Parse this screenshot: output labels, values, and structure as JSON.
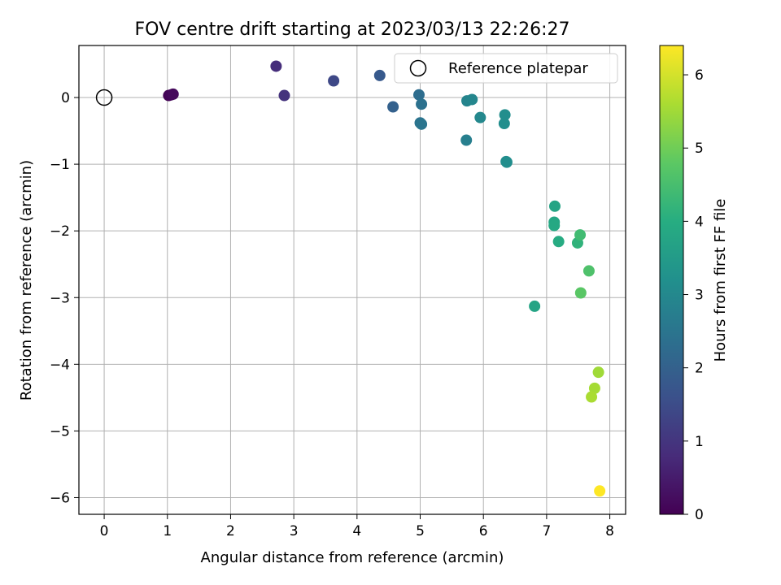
{
  "chart_data": {
    "type": "scatter",
    "title": "FOV centre drift starting at 2023/03/13 22:26:27",
    "xlabel": "Angular distance from reference (arcmin)",
    "ylabel": "Rotation from reference (arcmin)",
    "xlim": [
      -0.4,
      8.25
    ],
    "ylim": [
      -6.25,
      0.78
    ],
    "xticks": [
      0,
      1,
      2,
      3,
      4,
      5,
      6,
      7,
      8
    ],
    "yticks": [
      0,
      -1,
      -2,
      -3,
      -4,
      -5,
      -6
    ],
    "xtick_labels": [
      "0",
      "1",
      "2",
      "3",
      "4",
      "5",
      "6",
      "7",
      "8"
    ],
    "ytick_labels": [
      "0",
      "−1",
      "−2",
      "−3",
      "−4",
      "−5",
      "−6"
    ],
    "grid": true,
    "legend": {
      "position": "top-right",
      "entries": [
        "Reference platepar"
      ]
    },
    "reference_point": {
      "x": 0,
      "y": 0
    },
    "colorbar": {
      "label": "Hours from first FF file",
      "range": [
        0,
        6.4
      ],
      "ticks": [
        0,
        1,
        2,
        3,
        4,
        5,
        6
      ],
      "tick_labels": [
        "0",
        "1",
        "2",
        "3",
        "4",
        "5",
        "6"
      ],
      "colormap": "viridis"
    },
    "points": [
      {
        "x": 1.02,
        "y": 0.03,
        "hours": 0.05
      },
      {
        "x": 1.06,
        "y": 0.04,
        "hours": 0.1
      },
      {
        "x": 1.09,
        "y": 0.05,
        "hours": 0.15
      },
      {
        "x": 2.72,
        "y": 0.47,
        "hours": 0.85
      },
      {
        "x": 2.85,
        "y": 0.03,
        "hours": 0.95
      },
      {
        "x": 3.63,
        "y": 0.25,
        "hours": 1.4
      },
      {
        "x": 4.36,
        "y": 0.33,
        "hours": 1.8
      },
      {
        "x": 4.57,
        "y": -0.14,
        "hours": 2.0
      },
      {
        "x": 4.98,
        "y": 0.04,
        "hours": 2.3
      },
      {
        "x": 5.02,
        "y": -0.1,
        "hours": 2.4
      },
      {
        "x": 5.0,
        "y": -0.38,
        "hours": 2.45
      },
      {
        "x": 5.02,
        "y": -0.4,
        "hours": 2.5
      },
      {
        "x": 5.74,
        "y": -0.05,
        "hours": 2.9
      },
      {
        "x": 5.82,
        "y": -0.03,
        "hours": 2.95
      },
      {
        "x": 5.73,
        "y": -0.64,
        "hours": 2.75
      },
      {
        "x": 5.95,
        "y": -0.3,
        "hours": 3.0
      },
      {
        "x": 6.34,
        "y": -0.26,
        "hours": 3.15
      },
      {
        "x": 6.33,
        "y": -0.39,
        "hours": 3.15
      },
      {
        "x": 6.36,
        "y": -0.96,
        "hours": 3.1
      },
      {
        "x": 6.37,
        "y": -0.97,
        "hours": 3.15
      },
      {
        "x": 6.81,
        "y": -3.13,
        "hours": 3.75
      },
      {
        "x": 7.13,
        "y": -1.63,
        "hours": 3.75
      },
      {
        "x": 7.12,
        "y": -1.87,
        "hours": 3.8
      },
      {
        "x": 7.12,
        "y": -1.92,
        "hours": 3.85
      },
      {
        "x": 7.19,
        "y": -2.16,
        "hours": 3.95
      },
      {
        "x": 7.49,
        "y": -2.18,
        "hours": 4.15
      },
      {
        "x": 7.53,
        "y": -2.06,
        "hours": 4.4
      },
      {
        "x": 7.67,
        "y": -2.6,
        "hours": 4.6
      },
      {
        "x": 7.54,
        "y": -2.93,
        "hours": 4.75
      },
      {
        "x": 7.82,
        "y": -4.12,
        "hours": 5.5
      },
      {
        "x": 7.76,
        "y": -4.36,
        "hours": 5.55
      },
      {
        "x": 7.71,
        "y": -4.49,
        "hours": 5.6
      },
      {
        "x": 7.84,
        "y": -5.9,
        "hours": 6.4
      }
    ]
  }
}
